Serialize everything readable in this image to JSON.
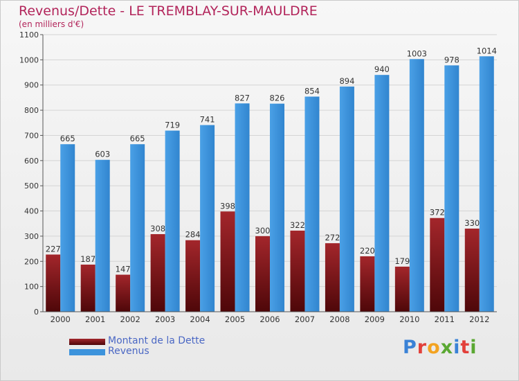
{
  "title": "Revenus/Dette - LE TREMBLAY-SUR-MAULDRE",
  "subtitle": "(en milliers d'€)",
  "colors": {
    "dette": "#7a0f12",
    "revenus": "#3c93dc",
    "title": "#b2245a"
  },
  "legend": {
    "dette": "Montant de la Dette",
    "revenus": "Revenus"
  },
  "logo": {
    "text": "Proxiti",
    "letters": [
      {
        "ch": "P",
        "color": "#3a82d6"
      },
      {
        "ch": "r",
        "color": "#e2403a"
      },
      {
        "ch": "o",
        "color": "#f3a321"
      },
      {
        "ch": "x",
        "color": "#5aa832"
      },
      {
        "ch": "i",
        "color": "#3a82d6"
      },
      {
        "ch": "t",
        "color": "#e2403a"
      },
      {
        "ch": "i",
        "color": "#5aa832"
      }
    ]
  },
  "chart_data": {
    "type": "bar",
    "title": "Revenus/Dette - LE TREMBLAY-SUR-MAULDRE",
    "subtitle": "(en milliers d'€)",
    "categories": [
      "2000",
      "2001",
      "2002",
      "2003",
      "2004",
      "2005",
      "2006",
      "2007",
      "2008",
      "2009",
      "2010",
      "2011",
      "2012"
    ],
    "series": [
      {
        "name": "Montant de la Dette",
        "values": [
          227,
          187,
          147,
          308,
          284,
          398,
          300,
          322,
          272,
          220,
          179,
          372,
          330
        ]
      },
      {
        "name": "Revenus",
        "values": [
          665,
          603,
          665,
          719,
          741,
          827,
          826,
          854,
          894,
          940,
          1003,
          978,
          1014
        ]
      }
    ],
    "ylim": [
      0,
      1100
    ],
    "yticks": [
      0,
      100,
      200,
      300,
      400,
      500,
      600,
      700,
      800,
      900,
      1000,
      1100
    ],
    "grid": true,
    "legend_position": "bottom-left"
  }
}
